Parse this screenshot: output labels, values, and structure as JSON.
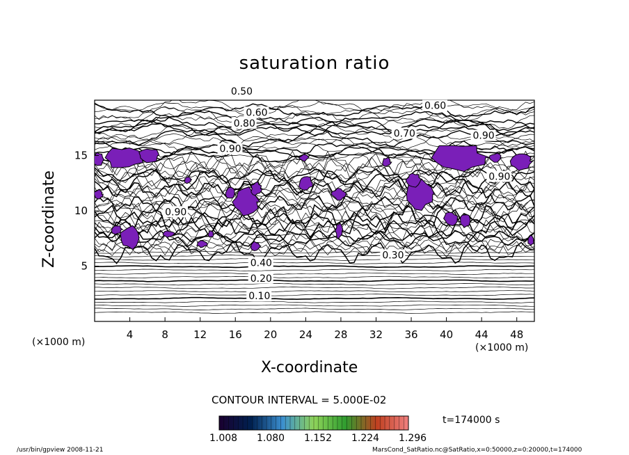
{
  "chart_data": {
    "type": "heatmap",
    "subtype": "contour",
    "title": "saturation ratio",
    "xlabel": "X-coordinate",
    "ylabel": "Z-coordinate",
    "x_unit": "(×1000 m)",
    "xlim": [
      0,
      50
    ],
    "ylim": [
      0,
      20
    ],
    "x_ticks": [
      "4",
      "8",
      "12",
      "16",
      "20",
      "24",
      "28",
      "32",
      "36",
      "40",
      "44",
      "48"
    ],
    "y_ticks": [
      "5",
      "10",
      "15"
    ],
    "contour_interval": "CONTOUR INTERVAL = 5.000E-02",
    "contour_labels": [
      {
        "text": "0.10",
        "x": 17.5,
        "y": 2.0
      },
      {
        "text": "0.20",
        "x": 17.7,
        "y": 3.6
      },
      {
        "text": "0.40",
        "x": 17.7,
        "y": 5.0
      },
      {
        "text": "0.30",
        "x": 32.7,
        "y": 5.7
      },
      {
        "text": "0.50",
        "x": 15.5,
        "y": 20.5
      },
      {
        "text": "0.60",
        "x": 17.2,
        "y": 18.6
      },
      {
        "text": "0.80",
        "x": 15.8,
        "y": 17.6
      },
      {
        "text": "0.60",
        "x": 37.5,
        "y": 19.2
      },
      {
        "text": "0.70",
        "x": 34.0,
        "y": 16.7
      },
      {
        "text": "0.90",
        "x": 43.0,
        "y": 16.5
      },
      {
        "text": "0.90",
        "x": 44.8,
        "y": 12.8
      },
      {
        "text": "0.90",
        "x": 8.0,
        "y": 9.6
      },
      {
        "text": "0.90",
        "x": 14.2,
        "y": 15.3
      }
    ],
    "shaded_regions_min": 1.0,
    "colorbar": {
      "ticks": [
        "1.008",
        "1.080",
        "1.152",
        "1.224",
        "1.296"
      ],
      "range": [
        1.008,
        1.296
      ],
      "colors": [
        "#1a0030",
        "#00204f",
        "#3b8fd0",
        "#8fd45a",
        "#2f9d2f",
        "#c04020",
        "#f08080"
      ]
    },
    "time_label": "t=174000 s"
  },
  "footer": {
    "left": "/usr/bin/gpview   2008-11-21",
    "right": "MarsCond_SatRatio.nc@SatRatio,x=0:50000,z=0:20000,t=174000"
  }
}
